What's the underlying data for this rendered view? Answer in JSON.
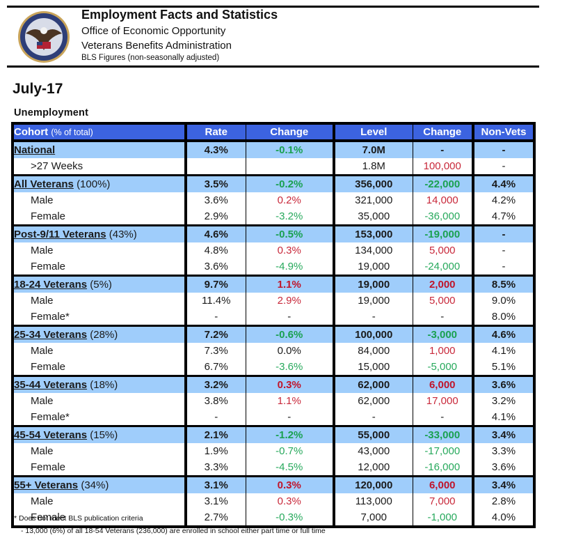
{
  "header": {
    "title": "Employment Facts and Statistics",
    "office": "Office of Economic Opportunity",
    "administration": "Veterans Benefits Administration",
    "note": "BLS Figures (non-seasonally adjusted)",
    "logo": "va-seal-icon"
  },
  "period": "July-17",
  "section_title": "Unemployment",
  "colors": {
    "header_bg": "#3c63e0",
    "group_row_bg": "#9fcdfb",
    "increase": "#c0142a",
    "decrease": "#1aa150"
  },
  "table": {
    "columns": [
      {
        "label": "Cohort",
        "sublabel": "(% of total)"
      },
      {
        "label": "Rate"
      },
      {
        "label": "Change"
      },
      {
        "label": "Level"
      },
      {
        "label": "Change"
      },
      {
        "label": "Non-Vets"
      }
    ],
    "rows": [
      {
        "type": "group",
        "name": "National",
        "share": "",
        "rate": "4.3%",
        "rate_change": "-0.1%",
        "rate_change_dir": "down",
        "level": "7.0M",
        "level_change": "-",
        "level_change_dir": "none",
        "nonvets": "-"
      },
      {
        "type": "sub",
        "name": ">27 Weeks",
        "rate": "",
        "rate_change": "",
        "rate_change_dir": "none",
        "level": "1.8M",
        "level_change": "100,000",
        "level_change_dir": "up",
        "nonvets": "-"
      },
      {
        "type": "group",
        "name": "All Veterans",
        "share": "(100%)",
        "rate": "3.5%",
        "rate_change": "-0.2%",
        "rate_change_dir": "down",
        "level": "356,000",
        "level_change": "-22,000",
        "level_change_dir": "down",
        "nonvets": "4.4%"
      },
      {
        "type": "sub",
        "name": "Male",
        "rate": "3.6%",
        "rate_change": "0.2%",
        "rate_change_dir": "up",
        "level": "321,000",
        "level_change": "14,000",
        "level_change_dir": "up",
        "nonvets": "4.2%"
      },
      {
        "type": "sub",
        "name": "Female",
        "rate": "2.9%",
        "rate_change": "-3.2%",
        "rate_change_dir": "down",
        "level": "35,000",
        "level_change": "-36,000",
        "level_change_dir": "down",
        "nonvets": "4.7%"
      },
      {
        "type": "group",
        "name": "Post-9/11 Veterans",
        "share": "(43%)",
        "rate": "4.6%",
        "rate_change": "-0.5%",
        "rate_change_dir": "down",
        "level": "153,000",
        "level_change": "-19,000",
        "level_change_dir": "down",
        "nonvets": "-"
      },
      {
        "type": "sub",
        "name": "Male",
        "rate": "4.8%",
        "rate_change": "0.3%",
        "rate_change_dir": "up",
        "level": "134,000",
        "level_change": "5,000",
        "level_change_dir": "up",
        "nonvets": "-"
      },
      {
        "type": "sub",
        "name": "Female",
        "rate": "3.6%",
        "rate_change": "-4.9%",
        "rate_change_dir": "down",
        "level": "19,000",
        "level_change": "-24,000",
        "level_change_dir": "down",
        "nonvets": "-"
      },
      {
        "type": "group",
        "name": "18-24 Veterans",
        "share": "(5%)",
        "rate": "9.7%",
        "rate_change": "1.1%",
        "rate_change_dir": "up",
        "level": "19,000",
        "level_change": "2,000",
        "level_change_dir": "up",
        "nonvets": "8.5%"
      },
      {
        "type": "sub",
        "name": "Male",
        "rate": "11.4%",
        "rate_change": "2.9%",
        "rate_change_dir": "up",
        "level": "19,000",
        "level_change": "5,000",
        "level_change_dir": "up",
        "nonvets": "9.0%"
      },
      {
        "type": "sub",
        "name": "Female*",
        "rate": "-",
        "rate_change": "-",
        "rate_change_dir": "none",
        "level": "-",
        "level_change": "-",
        "level_change_dir": "none",
        "nonvets": "8.0%"
      },
      {
        "type": "group",
        "name": "25-34 Veterans",
        "share": "(28%)",
        "rate": "7.2%",
        "rate_change": "-0.6%",
        "rate_change_dir": "down",
        "level": "100,000",
        "level_change": "-3,000",
        "level_change_dir": "down",
        "nonvets": "4.6%"
      },
      {
        "type": "sub",
        "name": "Male",
        "rate": "7.3%",
        "rate_change": "0.0%",
        "rate_change_dir": "none",
        "level": "84,000",
        "level_change": "1,000",
        "level_change_dir": "up",
        "nonvets": "4.1%"
      },
      {
        "type": "sub",
        "name": "Female",
        "rate": "6.7%",
        "rate_change": "-3.6%",
        "rate_change_dir": "down",
        "level": "15,000",
        "level_change": "-5,000",
        "level_change_dir": "down",
        "nonvets": "5.1%"
      },
      {
        "type": "group",
        "name": "35-44 Veterans",
        "share": "(18%)",
        "rate": "3.2%",
        "rate_change": "0.3%",
        "rate_change_dir": "up",
        "level": "62,000",
        "level_change": "6,000",
        "level_change_dir": "up",
        "nonvets": "3.6%"
      },
      {
        "type": "sub",
        "name": "Male",
        "rate": "3.8%",
        "rate_change": "1.1%",
        "rate_change_dir": "up",
        "level": "62,000",
        "level_change": "17,000",
        "level_change_dir": "up",
        "nonvets": "3.2%"
      },
      {
        "type": "sub",
        "name": "Female*",
        "rate": "-",
        "rate_change": "-",
        "rate_change_dir": "none",
        "level": "-",
        "level_change": "-",
        "level_change_dir": "none",
        "nonvets": "4.1%"
      },
      {
        "type": "group",
        "name": "45-54 Veterans",
        "share": "(15%)",
        "rate": "2.1%",
        "rate_change": "-1.2%",
        "rate_change_dir": "down",
        "level": "55,000",
        "level_change": "-33,000",
        "level_change_dir": "down",
        "nonvets": "3.4%"
      },
      {
        "type": "sub",
        "name": "Male",
        "rate": "1.9%",
        "rate_change": "-0.7%",
        "rate_change_dir": "down",
        "level": "43,000",
        "level_change": "-17,000",
        "level_change_dir": "down",
        "nonvets": "3.3%"
      },
      {
        "type": "sub",
        "name": "Female",
        "rate": "3.3%",
        "rate_change": "-4.5%",
        "rate_change_dir": "down",
        "level": "12,000",
        "level_change": "-16,000",
        "level_change_dir": "down",
        "nonvets": "3.6%"
      },
      {
        "type": "group",
        "name": "55+ Veterans",
        "share": "(34%)",
        "rate": "3.1%",
        "rate_change": "0.3%",
        "rate_change_dir": "up",
        "level": "120,000",
        "level_change": "6,000",
        "level_change_dir": "up",
        "nonvets": "3.4%"
      },
      {
        "type": "sub",
        "name": "Male",
        "rate": "3.1%",
        "rate_change": "0.3%",
        "rate_change_dir": "up",
        "level": "113,000",
        "level_change": "7,000",
        "level_change_dir": "up",
        "nonvets": "2.8%"
      },
      {
        "type": "sub",
        "name": "Female",
        "rate": "2.7%",
        "rate_change": "-0.3%",
        "rate_change_dir": "down",
        "level": "7,000",
        "level_change": "-1,000",
        "level_change_dir": "down",
        "nonvets": "4.0%"
      }
    ]
  },
  "footnotes": [
    "*  Does not meet BLS publication criteria",
    "-  13,000 (6%) of all 18-54 Veterans (236,000) are enrolled in school either part time or full time"
  ]
}
